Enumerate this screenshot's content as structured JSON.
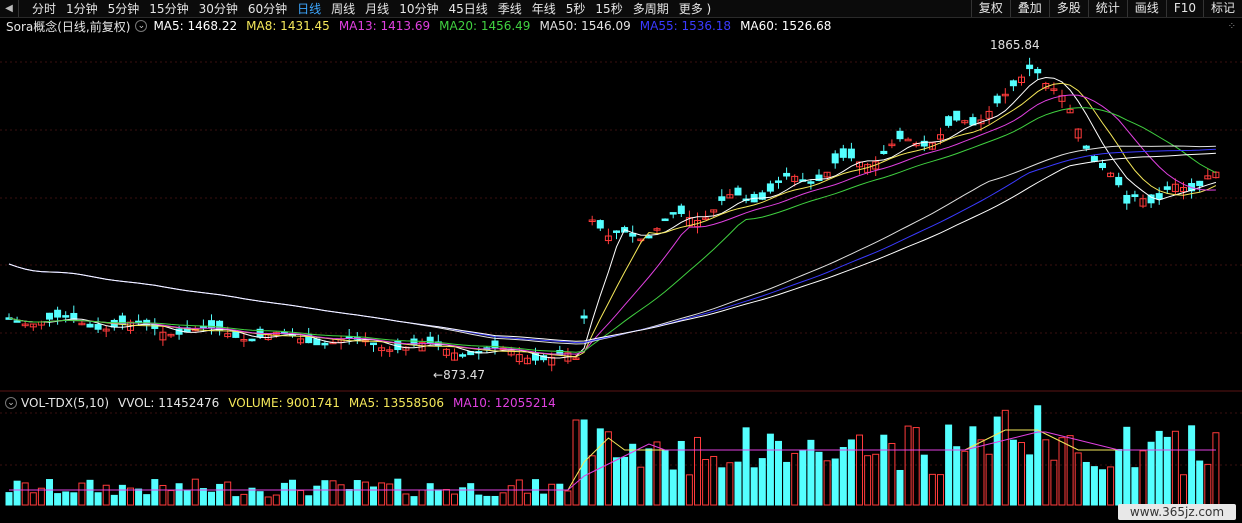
{
  "toolbar": {
    "left_icon": "◀",
    "periods": [
      "分时",
      "1分钟",
      "5分钟",
      "15分钟",
      "30分钟",
      "60分钟",
      "日线",
      "周线",
      "月线",
      "10分钟",
      "45日线",
      "季线",
      "年线",
      "5秒",
      "15秒",
      "多周期",
      "更多 )"
    ],
    "active_period": "日线",
    "tools": [
      "复权",
      "叠加",
      "多股",
      "统计",
      "画线",
      "F10",
      "标记"
    ]
  },
  "price_legend": {
    "name": "Sora概念(日线,前复权)",
    "ma": [
      {
        "label": "MA5: 1468.22",
        "color": "#ffffff"
      },
      {
        "label": "MA8: 1431.45",
        "color": "#f5e85a"
      },
      {
        "label": "MA13: 1413.69",
        "color": "#e040e0"
      },
      {
        "label": "MA20: 1456.49",
        "color": "#40d040"
      },
      {
        "label": "MA50: 1546.09",
        "color": "#e0e0e0"
      },
      {
        "label": "MA55: 1536.18",
        "color": "#3a3aff"
      },
      {
        "label": "MA60: 1526.68",
        "color": "#ffffff"
      }
    ]
  },
  "annotations": {
    "high": "1865.84",
    "low": "873.47"
  },
  "volume_legend": {
    "name": "VOL-TDX(5,10)",
    "items": [
      {
        "label": "VVOL: 11452476",
        "color": "#e6e6e6"
      },
      {
        "label": "VOLUME: 9001741",
        "color": "#f5e85a"
      },
      {
        "label": "MA5: 13558506",
        "color": "#f5e85a"
      },
      {
        "label": "MA10: 12055214",
        "color": "#e040e0"
      }
    ]
  },
  "watermark": "www.365jz.com",
  "colors": {
    "up": "#ff3b3b",
    "down": "#54ffff",
    "bg": "#000000",
    "grid": "#3a1010"
  }
}
